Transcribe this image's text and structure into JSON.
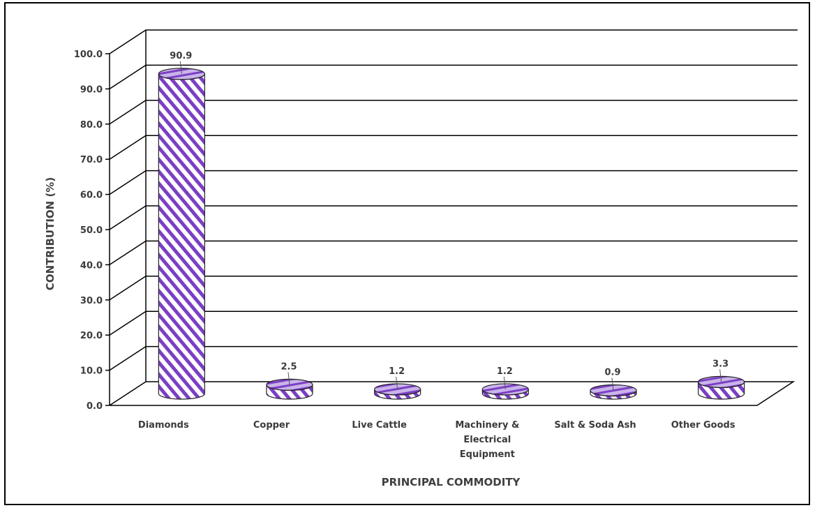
{
  "chart_data": {
    "type": "bar",
    "style": "3d-cylinder",
    "title": "",
    "xlabel": "PRINCIPAL COMMODITY",
    "ylabel": "CONTRIBUTION (%)",
    "categories": [
      "Diamonds",
      "Copper",
      "Live Cattle",
      "Machinery & Electrical Equipment",
      "Salt & Soda Ash",
      "Other Goods"
    ],
    "category_lines": [
      [
        "Diamonds"
      ],
      [
        "Copper"
      ],
      [
        "Live Cattle"
      ],
      [
        "Machinery &",
        "Electrical",
        "Equipment"
      ],
      [
        "Salt & Soda Ash"
      ],
      [
        "Other Goods"
      ]
    ],
    "series": [
      {
        "values": [
          90.9,
          2.5,
          1.2,
          1.2,
          0.9,
          3.3
        ]
      }
    ],
    "data_labels": [
      "90.9",
      "2.5",
      "1.2",
      "1.2",
      "0.9",
      "3.3"
    ],
    "ylim": [
      0,
      100
    ],
    "yticks": [
      "0.0",
      "10.0",
      "20.0",
      "30.0",
      "40.0",
      "50.0",
      "60.0",
      "70.0",
      "80.0",
      "90.0",
      "100.0"
    ],
    "grid": true,
    "colors": {
      "bar": "#7b3fc4",
      "bar_light": "#ffffff",
      "grid": "#000000",
      "text": "#3a3a3a"
    }
  }
}
